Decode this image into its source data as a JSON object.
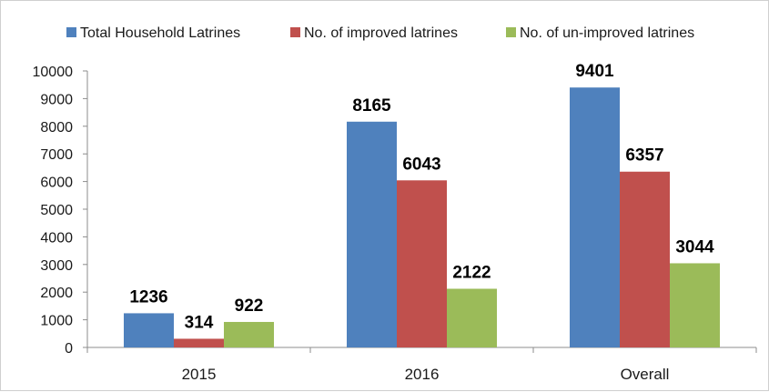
{
  "chart_data": {
    "type": "bar",
    "categories": [
      "2015",
      "2016",
      "Overall"
    ],
    "series": [
      {
        "name": "Total Household Latrines",
        "values": [
          1236,
          8165,
          9401
        ],
        "color": "#4f81bd"
      },
      {
        "name": "No. of improved latrines",
        "values": [
          314,
          6043,
          6357
        ],
        "color": "#c0504d"
      },
      {
        "name": "No. of un-improved latrines",
        "values": [
          922,
          2122,
          3044
        ],
        "color": "#9bbb59"
      }
    ],
    "ylim": [
      0,
      10000
    ],
    "yticks": [
      0,
      1000,
      2000,
      3000,
      4000,
      5000,
      6000,
      7000,
      8000,
      9000,
      10000
    ],
    "data_labels": true,
    "legend_position": "top",
    "grid": false,
    "title": "",
    "xlabel": "",
    "ylabel": ""
  }
}
